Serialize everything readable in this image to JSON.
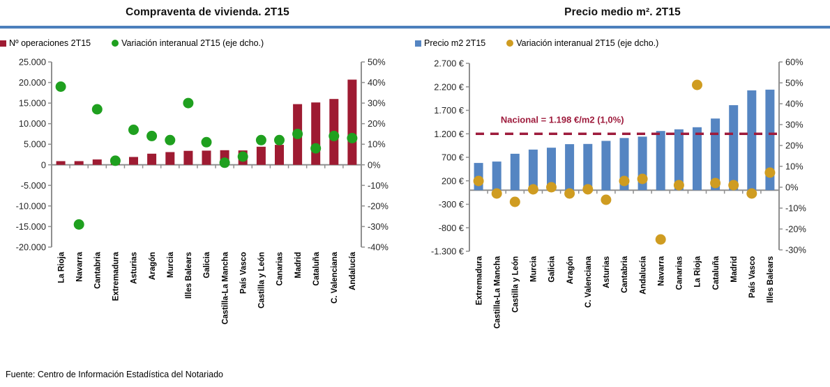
{
  "header": {
    "divider_color": "#4C7FBC"
  },
  "footer": {
    "source": "Fuente: Centro de Información Estadística del Notariado"
  },
  "chart_data": [
    {
      "type": "bar",
      "title": "Compraventa de vivienda. 2T15",
      "grid": false,
      "legend_position": "top",
      "categories": [
        "La Rioja",
        "Navarra",
        "Cantabria",
        "Extremadura",
        "Asturias",
        "Aragón",
        "Murcia",
        "Illes Balears",
        "Galicia",
        "Castilla-La Mancha",
        "País Vasco",
        "Castilla y León",
        "Canarias",
        "Madrid",
        "Cataluña",
        "C. Valenciana",
        "Andalucía"
      ],
      "series": [
        {
          "name": "Nº operaciones 2T15",
          "style": "bar",
          "axis": "left",
          "color": "#9E1B32",
          "values": [
            900,
            900,
            1300,
            1400,
            1900,
            2700,
            3100,
            3400,
            3450,
            3550,
            3500,
            4400,
            4850,
            14750,
            15150,
            16000,
            20700
          ]
        },
        {
          "name": "Variación interanual 2T15 (eje dcho.)",
          "style": "scatter",
          "axis": "right",
          "color": "#1FA01F",
          "values": [
            38,
            -29,
            27,
            2,
            17,
            14,
            12,
            30,
            11,
            1,
            4,
            12,
            12,
            15,
            8,
            14,
            13
          ]
        }
      ],
      "left_axis": {
        "min": -20000,
        "max": 25000,
        "step": 5000,
        "tick_labels": [
          "25.000",
          "20.000",
          "15.000",
          "10.000",
          "5.000",
          "0",
          "-5.000",
          "-10.000",
          "-15.000",
          "-20.000"
        ]
      },
      "right_axis": {
        "min": -40,
        "max": 50,
        "step": 10,
        "tick_labels": [
          "50%",
          "40%",
          "30%",
          "20%",
          "10%",
          "0%",
          "-10%",
          "-20%",
          "-30%",
          "-40%"
        ]
      }
    },
    {
      "type": "bar",
      "title": "Precio medio m². 2T15",
      "grid": false,
      "legend_position": "top",
      "categories": [
        "Extremadura",
        "Castilla-La Mancha",
        "Castilla y León",
        "Murcia",
        "Galicia",
        "Aragón",
        "C. Valenciana",
        "Asturias",
        "Cantabria",
        "Andalucía",
        "Navarra",
        "Canarias",
        "La Rioja",
        "Cataluña",
        "Madrid",
        "País Vasco",
        "Illes Balears"
      ],
      "series": [
        {
          "name": "Precio m2 2T15",
          "style": "bar",
          "axis": "left",
          "color": "#5585C2",
          "values": [
            580,
            610,
            775,
            865,
            905,
            980,
            985,
            1050,
            1110,
            1140,
            1260,
            1295,
            1340,
            1525,
            1810,
            2125,
            2140
          ]
        },
        {
          "name": "Variación interanual 2T15 (eje dcho.)",
          "style": "scatter",
          "axis": "right",
          "color": "#CF9C21",
          "values": [
            3,
            -3,
            -7,
            -1,
            0,
            -3,
            -1,
            -6,
            3,
            4,
            -25,
            1,
            49,
            2,
            1,
            -3,
            7
          ]
        }
      ],
      "left_axis": {
        "min": -1300,
        "max": 2700,
        "step": 500,
        "tick_labels": [
          "2.700 €",
          "2.200 €",
          "1.700 €",
          "1.200 €",
          "700 €",
          "200 €",
          "-300 €",
          "-800 €",
          "-1.300 €"
        ]
      },
      "right_axis": {
        "min": -30,
        "max": 60,
        "step": 10,
        "tick_labels": [
          "60%",
          "50%",
          "40%",
          "30%",
          "20%",
          "10%",
          "0%",
          "-10%",
          "-20%",
          "-30%"
        ]
      },
      "annotation": {
        "label": "Nacional = 1.198 €/m2 (1,0%)",
        "value": 1200,
        "color": "#9E1B3C"
      }
    }
  ]
}
